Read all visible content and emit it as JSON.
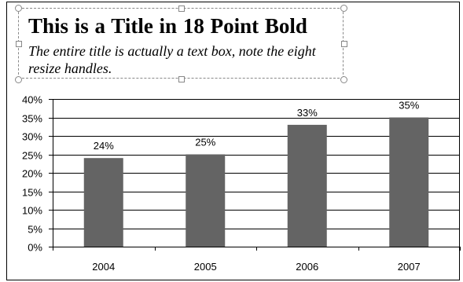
{
  "title": {
    "main": "This is a Title in 18 Point Bold",
    "subtitle": "The entire title is actually a text box, note the eight resize handles."
  },
  "chart_data": {
    "type": "bar",
    "categories": [
      "2004",
      "2005",
      "2006",
      "2007"
    ],
    "values": [
      24,
      25,
      33,
      35
    ],
    "data_labels": [
      "24%",
      "25%",
      "33%",
      "35%"
    ],
    "ylim": [
      0,
      40
    ],
    "yticks": [
      "0%",
      "5%",
      "10%",
      "15%",
      "20%",
      "25%",
      "30%",
      "35%",
      "40%"
    ],
    "grid": true,
    "bar_color": "#646464",
    "xlabel": "",
    "ylabel": ""
  }
}
